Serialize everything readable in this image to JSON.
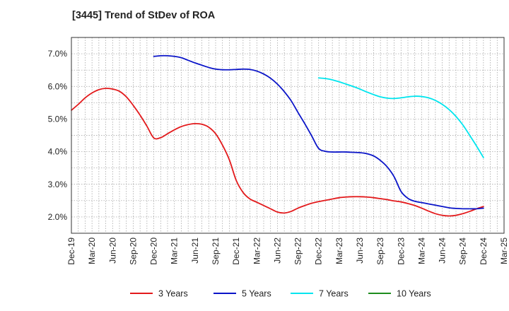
{
  "chart_data": {
    "type": "line",
    "title": "[3445]  Trend of StDev of ROA",
    "xlabel": "",
    "ylabel": "",
    "x_ticks": [
      "Dec-19",
      "Mar-20",
      "Jun-20",
      "Sep-20",
      "Dec-20",
      "Mar-21",
      "Jun-21",
      "Sep-21",
      "Dec-21",
      "Mar-22",
      "Jun-22",
      "Sep-22",
      "Dec-22",
      "Mar-23",
      "Jun-23",
      "Sep-23",
      "Dec-23",
      "Mar-24",
      "Jun-24",
      "Sep-24",
      "Dec-24",
      "Mar-25"
    ],
    "y_ticks": [
      "2.0%",
      "3.0%",
      "4.0%",
      "5.0%",
      "6.0%",
      "7.0%"
    ],
    "y_tick_values": [
      2.0,
      3.0,
      4.0,
      5.0,
      6.0,
      7.0
    ],
    "ylim": [
      1.5,
      7.5
    ],
    "grid": true,
    "legend_position": "bottom",
    "series": [
      {
        "name": "3 Years",
        "color": "#e31a1c",
        "x": [
          "Dec-19",
          "Jan-20",
          "Feb-20",
          "Mar-20",
          "Apr-20",
          "May-20",
          "Jun-20",
          "Jul-20",
          "Aug-20",
          "Sep-20",
          "Oct-20",
          "Nov-20",
          "Dec-20",
          "Jan-21",
          "Feb-21",
          "Mar-21",
          "Apr-21",
          "May-21",
          "Jun-21",
          "Jul-21",
          "Aug-21",
          "Sep-21",
          "Oct-21",
          "Nov-21",
          "Dec-21",
          "Jan-22",
          "Feb-22",
          "Mar-22",
          "Apr-22",
          "May-22",
          "Jun-22",
          "Jul-22",
          "Aug-22",
          "Sep-22",
          "Oct-22",
          "Nov-22",
          "Dec-22",
          "Jan-23",
          "Feb-23",
          "Mar-23",
          "Apr-23",
          "May-23",
          "Jun-23",
          "Jul-23",
          "Aug-23",
          "Sep-23",
          "Oct-23",
          "Nov-23",
          "Dec-23",
          "Jan-24",
          "Feb-24",
          "Mar-24",
          "Apr-24",
          "May-24",
          "Jun-24",
          "Jul-24",
          "Aug-24",
          "Sep-24",
          "Oct-24",
          "Nov-24",
          "Dec-24"
        ],
        "values": [
          5.27,
          5.45,
          5.65,
          5.8,
          5.9,
          5.94,
          5.92,
          5.85,
          5.68,
          5.42,
          5.12,
          4.78,
          4.42,
          4.43,
          4.55,
          4.67,
          4.77,
          4.83,
          4.86,
          4.84,
          4.75,
          4.55,
          4.2,
          3.75,
          3.12,
          2.75,
          2.55,
          2.45,
          2.35,
          2.25,
          2.15,
          2.12,
          2.17,
          2.27,
          2.35,
          2.42,
          2.47,
          2.51,
          2.55,
          2.59,
          2.61,
          2.62,
          2.62,
          2.61,
          2.59,
          2.56,
          2.53,
          2.49,
          2.46,
          2.41,
          2.35,
          2.27,
          2.18,
          2.1,
          2.05,
          2.03,
          2.05,
          2.1,
          2.17,
          2.25,
          2.32
        ]
      },
      {
        "name": "5 Years",
        "color": "#0a14c8",
        "x": [
          "Dec-20",
          "Jan-21",
          "Feb-21",
          "Mar-21",
          "Apr-21",
          "May-21",
          "Jun-21",
          "Jul-21",
          "Aug-21",
          "Sep-21",
          "Oct-21",
          "Nov-21",
          "Dec-21",
          "Jan-22",
          "Feb-22",
          "Mar-22",
          "Apr-22",
          "May-22",
          "Jun-22",
          "Jul-22",
          "Aug-22",
          "Sep-22",
          "Oct-22",
          "Nov-22",
          "Dec-22",
          "Jan-23",
          "Feb-23",
          "Mar-23",
          "Apr-23",
          "May-23",
          "Jun-23",
          "Jul-23",
          "Aug-23",
          "Sep-23",
          "Oct-23",
          "Nov-23",
          "Dec-23",
          "Jan-24",
          "Feb-24",
          "Mar-24",
          "Apr-24",
          "May-24",
          "Jun-24",
          "Jul-24",
          "Aug-24",
          "Sep-24",
          "Oct-24",
          "Nov-24",
          "Dec-24"
        ],
        "values": [
          6.92,
          6.94,
          6.94,
          6.92,
          6.88,
          6.8,
          6.72,
          6.65,
          6.58,
          6.53,
          6.51,
          6.51,
          6.52,
          6.53,
          6.52,
          6.47,
          6.38,
          6.25,
          6.07,
          5.84,
          5.56,
          5.2,
          4.85,
          4.48,
          4.1,
          4.01,
          3.99,
          3.99,
          3.99,
          3.98,
          3.97,
          3.94,
          3.87,
          3.73,
          3.53,
          3.23,
          2.78,
          2.57,
          2.48,
          2.44,
          2.4,
          2.36,
          2.32,
          2.28,
          2.26,
          2.25,
          2.25,
          2.25,
          2.27
        ]
      },
      {
        "name": "7 Years",
        "color": "#00e5ee",
        "x": [
          "Dec-22",
          "Jan-23",
          "Feb-23",
          "Mar-23",
          "Apr-23",
          "May-23",
          "Jun-23",
          "Jul-23",
          "Aug-23",
          "Sep-23",
          "Oct-23",
          "Nov-23",
          "Dec-23",
          "Jan-24",
          "Feb-24",
          "Mar-24",
          "Apr-24",
          "May-24",
          "Jun-24",
          "Jul-24",
          "Aug-24",
          "Sep-24",
          "Oct-24",
          "Nov-24",
          "Dec-24"
        ],
        "values": [
          6.26,
          6.24,
          6.2,
          6.14,
          6.07,
          6.0,
          5.92,
          5.83,
          5.75,
          5.68,
          5.64,
          5.63,
          5.65,
          5.68,
          5.7,
          5.69,
          5.65,
          5.57,
          5.45,
          5.29,
          5.08,
          4.82,
          4.5,
          4.17,
          3.82
        ]
      },
      {
        "name": "10 Years",
        "color": "#1e8c1e",
        "x": [],
        "values": []
      }
    ]
  }
}
